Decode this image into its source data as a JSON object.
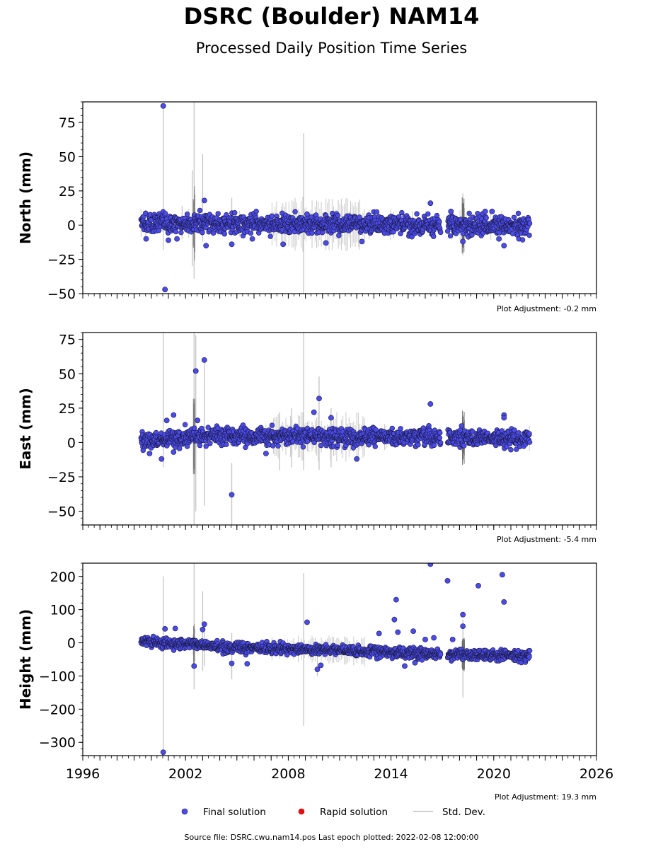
{
  "header": {
    "title": "DSRC (Boulder) NAM14",
    "subtitle": "Processed Daily Position Time Series"
  },
  "footer": {
    "source_text": "Source file: DSRC.cwu.nam14.pos  Last epoch plotted: 2022-02-08 12:00:00"
  },
  "legend": {
    "placement": "bottom-center",
    "items": [
      {
        "label": "Final solution",
        "color": "#4b4bea",
        "marker": "circle"
      },
      {
        "label": "Rapid solution",
        "color": "#e01010",
        "marker": "circle"
      },
      {
        "label": "Std. Dev.",
        "color": "#d0d0d0",
        "marker": "line"
      }
    ]
  },
  "chart_data": [
    {
      "type": "scatter",
      "ylabel": "North (mm)",
      "xlim": [
        1996,
        2026
      ],
      "ylim": [
        -50,
        90
      ],
      "y_ticks": [
        -50,
        -25,
        0,
        25,
        50,
        75
      ],
      "x_ticks": [
        1996,
        2002,
        2008,
        2014,
        2020,
        2026
      ],
      "show_x_tick_labels": false,
      "adjustment_label": "Plot Adjustment: -0.2 mm",
      "series_color": "#4b4bea",
      "data_range": [
        1999.4,
        2022.1
      ],
      "gap": [
        2016.9,
        2017.3
      ],
      "trend": [
        [
          1999.4,
          1.5
        ],
        [
          2022.1,
          -0.5
        ]
      ],
      "scatter_amplitude": 4.5,
      "outliers": [
        [
          2000.7,
          87
        ],
        [
          2000.8,
          -47
        ],
        [
          2003.1,
          18
        ],
        [
          2016.3,
          16
        ],
        [
          2017.5,
          10
        ],
        [
          2018.2,
          -12
        ],
        [
          2019.5,
          10
        ],
        [
          2020.6,
          -15
        ],
        [
          2003.2,
          -15
        ],
        [
          2004.7,
          -14
        ],
        [
          2007.7,
          -14
        ],
        [
          2010.2,
          -13
        ],
        [
          2012.3,
          -12
        ],
        [
          2001.0,
          -11
        ],
        [
          1999.7,
          -10
        ],
        [
          2020.3,
          -10
        ],
        [
          2009.1,
          8
        ],
        [
          2001.5,
          -10
        ],
        [
          2005.9,
          -10
        ],
        [
          2019.9,
          10
        ]
      ],
      "stddev_spikes": [
        [
          2000.7,
          86,
          -18
        ],
        [
          2002.5,
          90,
          -39
        ],
        [
          2003.0,
          52,
          -12
        ],
        [
          2004.7,
          20,
          -8
        ],
        [
          2008.9,
          67,
          -50
        ],
        [
          2002.4,
          40,
          -30
        ],
        [
          2001.8,
          14,
          -10
        ],
        [
          2018.2,
          23,
          -22
        ]
      ]
    },
    {
      "type": "scatter",
      "ylabel": "East (mm)",
      "xlim": [
        1996,
        2026
      ],
      "ylim": [
        -60,
        80
      ],
      "y_ticks": [
        -50,
        -25,
        0,
        25,
        50,
        75
      ],
      "x_ticks": [
        1996,
        2002,
        2008,
        2014,
        2020,
        2026
      ],
      "show_x_tick_labels": false,
      "adjustment_label": "Plot Adjustment: -5.4 mm",
      "series_color": "#4b4bea",
      "data_range": [
        1999.4,
        2022.1
      ],
      "gap": [
        2016.9,
        2017.3
      ],
      "trend": [
        [
          1999.4,
          1.0
        ],
        [
          2003.0,
          5.0
        ],
        [
          2022.1,
          3.0
        ]
      ],
      "scatter_amplitude": 4.0,
      "outliers": [
        [
          2002.6,
          52
        ],
        [
          2003.1,
          60
        ],
        [
          2002.7,
          16
        ],
        [
          2001.3,
          20
        ],
        [
          2000.9,
          16
        ],
        [
          2004.7,
          -38
        ],
        [
          2009.8,
          32
        ],
        [
          2009.5,
          22
        ],
        [
          2016.3,
          28
        ],
        [
          2020.6,
          20
        ],
        [
          2020.6,
          18
        ],
        [
          2000.6,
          -12
        ],
        [
          2012.0,
          -12
        ],
        [
          1999.9,
          -8
        ],
        [
          2001.3,
          -7
        ],
        [
          2006.7,
          -8
        ],
        [
          2010.5,
          18
        ]
      ],
      "stddev_spikes": [
        [
          2000.7,
          80,
          -18
        ],
        [
          2002.5,
          80,
          -60
        ],
        [
          2002.6,
          78,
          -50
        ],
        [
          2003.1,
          60,
          -46
        ],
        [
          2004.7,
          -15,
          -60
        ],
        [
          2008.9,
          80,
          -20
        ],
        [
          2009.8,
          48,
          -20
        ],
        [
          2007.5,
          22,
          -20
        ],
        [
          2008.2,
          25,
          -18
        ],
        [
          2010.5,
          25,
          -18
        ]
      ]
    },
    {
      "type": "scatter",
      "ylabel": "Height (mm)",
      "xlim": [
        1996,
        2026
      ],
      "ylim": [
        -340,
        240
      ],
      "y_ticks": [
        -300,
        -200,
        -100,
        0,
        100,
        200
      ],
      "x_ticks": [
        1996,
        2002,
        2008,
        2014,
        2020,
        2026
      ],
      "x_tick_labels": [
        "1996",
        "2002",
        "2008",
        "2014",
        "2020",
        "2026"
      ],
      "show_x_tick_labels": true,
      "adjustment_label": "Plot Adjustment: 19.3 mm",
      "series_color": "#4b4bea",
      "data_range": [
        1999.4,
        2022.1
      ],
      "gap": [
        2016.9,
        2017.3
      ],
      "trend": [
        [
          1999.4,
          5
        ],
        [
          2005,
          -15
        ],
        [
          2010,
          -20
        ],
        [
          2014,
          -30
        ],
        [
          2022.1,
          -40
        ]
      ],
      "scatter_amplitude": 10,
      "outliers": [
        [
          2000.7,
          -330
        ],
        [
          2000.8,
          42
        ],
        [
          2001.4,
          43
        ],
        [
          2002.5,
          -70
        ],
        [
          2003.1,
          56
        ],
        [
          2003.0,
          40
        ],
        [
          2004.7,
          -62
        ],
        [
          2005.6,
          -63
        ],
        [
          2009.1,
          62
        ],
        [
          2009.7,
          -80
        ],
        [
          2009.9,
          -68
        ],
        [
          2013.3,
          28
        ],
        [
          2014.2,
          70
        ],
        [
          2014.3,
          130
        ],
        [
          2014.4,
          32
        ],
        [
          2014.8,
          -70
        ],
        [
          2015.3,
          35
        ],
        [
          2016.3,
          237
        ],
        [
          2016.5,
          15
        ],
        [
          2017.3,
          187
        ],
        [
          2017.6,
          10
        ],
        [
          2018.2,
          85
        ],
        [
          2018.2,
          50
        ],
        [
          2019.1,
          172
        ],
        [
          2020.5,
          205
        ],
        [
          2020.6,
          123
        ],
        [
          2016.0,
          10
        ],
        [
          2015.4,
          -60
        ]
      ],
      "stddev_spikes": [
        [
          2000.7,
          200,
          -340
        ],
        [
          2002.5,
          240,
          -140
        ],
        [
          2003.0,
          155,
          -85
        ],
        [
          2004.7,
          30,
          -110
        ],
        [
          2008.9,
          210,
          -250
        ],
        [
          2018.2,
          70,
          -165
        ],
        [
          2009.7,
          0,
          -100
        ],
        [
          2003.1,
          60,
          -70
        ]
      ]
    }
  ]
}
